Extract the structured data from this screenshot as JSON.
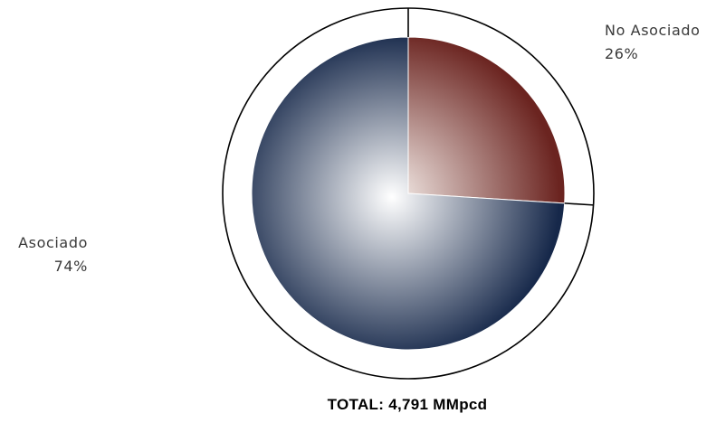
{
  "chart_data": {
    "type": "pie",
    "title": "",
    "slices": [
      {
        "label": "No Asociado",
        "value": 26,
        "value_label": "26%",
        "color_start": "#f4ece8",
        "color_end": "#6b2420"
      },
      {
        "label": "Asociado",
        "value": 74,
        "value_label": "74%",
        "color_start": "#ffffff",
        "color_end": "#16284a"
      }
    ],
    "start_angle_deg": 0,
    "direction": "clockwise",
    "footer": "TOTAL: 4,791 MMpcd"
  },
  "colors": {
    "outline": "#000000",
    "separator": "#ffffff",
    "label_text": "#3a3a3a"
  }
}
